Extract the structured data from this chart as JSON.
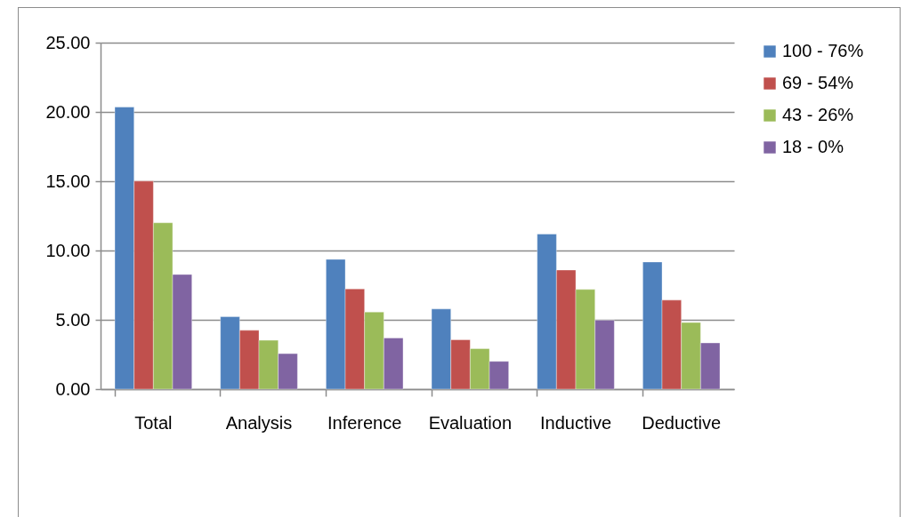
{
  "chart_data": {
    "type": "bar",
    "categories": [
      "Total",
      "Analysis",
      "Inference",
      "Evaluation",
      "Inductive",
      "Deductive"
    ],
    "series": [
      {
        "name": "100 - 76%",
        "color": "#4f81bd",
        "values": [
          20.35,
          5.22,
          9.36,
          5.78,
          11.19,
          9.17
        ]
      },
      {
        "name": "69 - 54%",
        "color": "#c0504d",
        "values": [
          15.01,
          4.24,
          7.23,
          3.56,
          8.59,
          6.42
        ]
      },
      {
        "name": "43 - 26%",
        "color": "#9bbb59",
        "values": [
          12.0,
          3.52,
          5.56,
          2.92,
          7.19,
          4.8
        ]
      },
      {
        "name": "18 - 0%",
        "color": "#8064a2",
        "values": [
          8.27,
          2.56,
          3.69,
          2.0,
          4.97,
          3.33
        ]
      }
    ],
    "ylim": [
      0,
      25
    ],
    "yticks": [
      {
        "value": 0,
        "label": "0.00"
      },
      {
        "value": 5,
        "label": "5.00"
      },
      {
        "value": 10,
        "label": "10.00"
      },
      {
        "value": 15,
        "label": "15.00"
      },
      {
        "value": 20,
        "label": "20.00"
      },
      {
        "value": 25,
        "label": "25.00"
      }
    ],
    "grid": "y",
    "legend": "right"
  }
}
